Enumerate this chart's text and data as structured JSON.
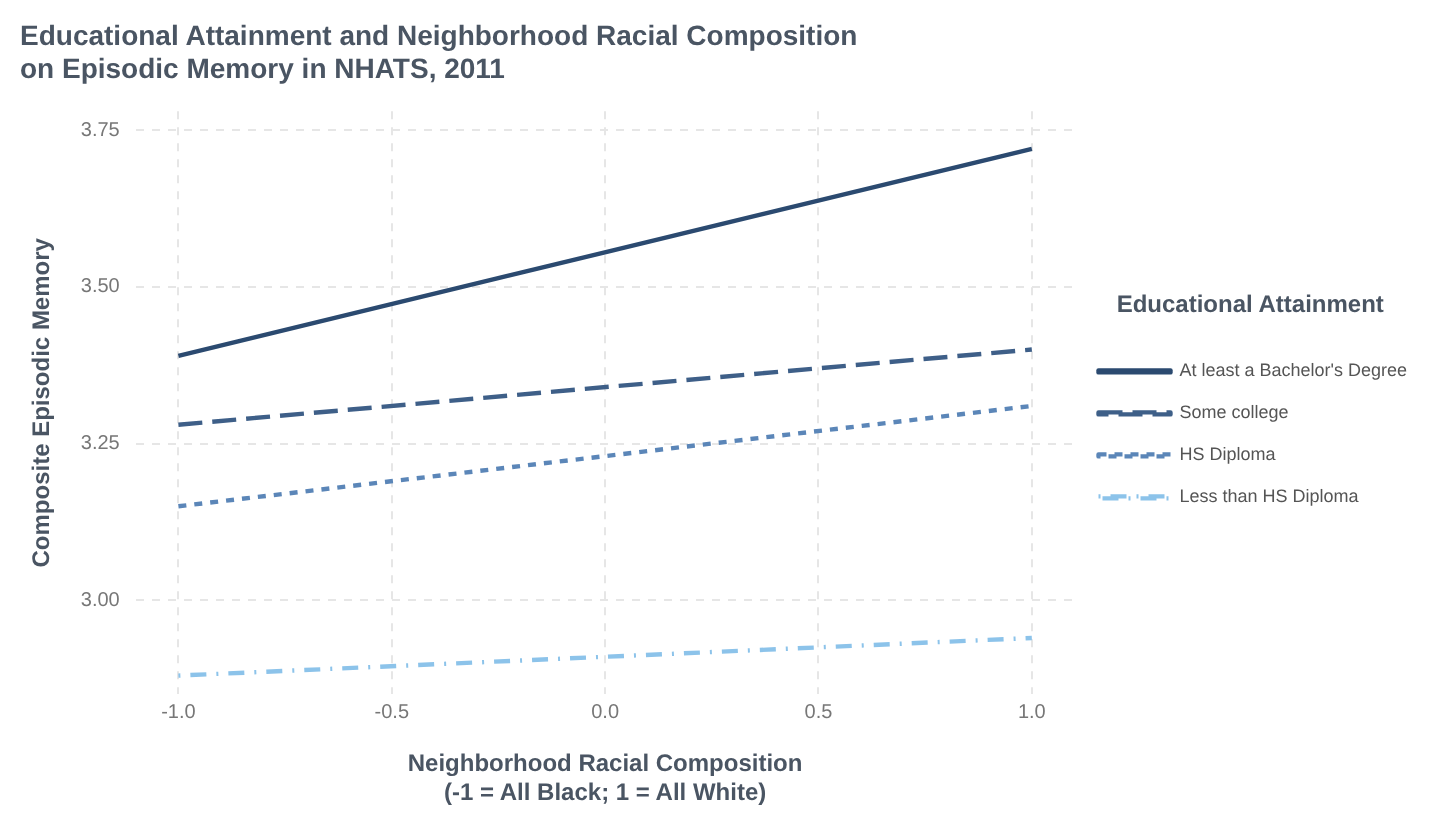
{
  "chart_data": {
    "type": "line",
    "title": [
      "Educational Attainment and Neighborhood Racial Composition",
      "on Episodic Memory in NHATS, 2011"
    ],
    "xlabel": [
      "Neighborhood Racial Composition",
      "(-1 = All Black; 1 = All White)"
    ],
    "ylabel": "Composite Episodic Memory",
    "legend_title": "Educational Attainment",
    "x": [
      -1,
      1
    ],
    "series": [
      {
        "name": "At least a Bachelor's Degree",
        "color": "#2b4a70",
        "values": [
          3.39,
          3.72
        ],
        "line_style": "solid"
      },
      {
        "name": "Some college",
        "color": "#3e5f88",
        "values": [
          3.28,
          3.4
        ],
        "line_style": "dashed"
      },
      {
        "name": "HS Diploma",
        "color": "#5b86b8",
        "values": [
          3.15,
          3.31
        ],
        "line_style": "dotted"
      },
      {
        "name": "Less than HS Diploma",
        "color": "#8cc3ea",
        "values": [
          2.88,
          2.94
        ],
        "line_style": "dashdot"
      }
    ],
    "xlim": [
      -1.1,
      1.1
    ],
    "xticks": [
      {
        "value": -1,
        "label": "-1.0"
      },
      {
        "value": -0.5,
        "label": "-0.5"
      },
      {
        "value": 0,
        "label": "0.0"
      },
      {
        "value": 0.5,
        "label": "0.5"
      },
      {
        "value": 1,
        "label": "1.0"
      }
    ],
    "ylim": [
      2.85,
      3.78
    ],
    "yticks": [
      {
        "value": 3,
        "label": "3.00"
      },
      {
        "value": 3.25,
        "label": "3.25"
      },
      {
        "value": 3.5,
        "label": "3.50"
      },
      {
        "value": 3.75,
        "label": "3.75"
      }
    ],
    "grid": true,
    "legend": "right",
    "marker": "none"
  }
}
